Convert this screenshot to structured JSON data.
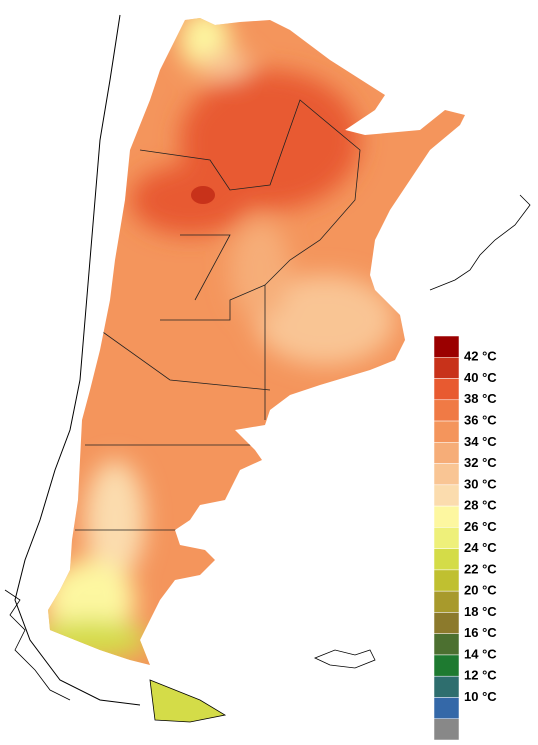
{
  "legend": {
    "colors": [
      "#9b0000",
      "#c8321a",
      "#e85a30",
      "#f07a45",
      "#f4955c",
      "#f6ad78",
      "#f9c594",
      "#fbdcae",
      "#fdf7a0",
      "#eef07a",
      "#d4dc48",
      "#c0c030",
      "#a89a2c",
      "#8c7a2c",
      "#4c7030",
      "#1e7a30",
      "#2e6e6e",
      "#3468a8",
      "#888888"
    ],
    "labels": [
      "42 °C",
      "40 °C",
      "38 °C",
      "36 °C",
      "34 °C",
      "32 °C",
      "30 °C",
      "28 °C",
      "26 °C",
      "24 °C",
      "22 °C",
      "20 °C",
      "18 °C",
      "16 °C",
      "14 °C",
      "12 °C",
      "10 °C"
    ]
  }
}
